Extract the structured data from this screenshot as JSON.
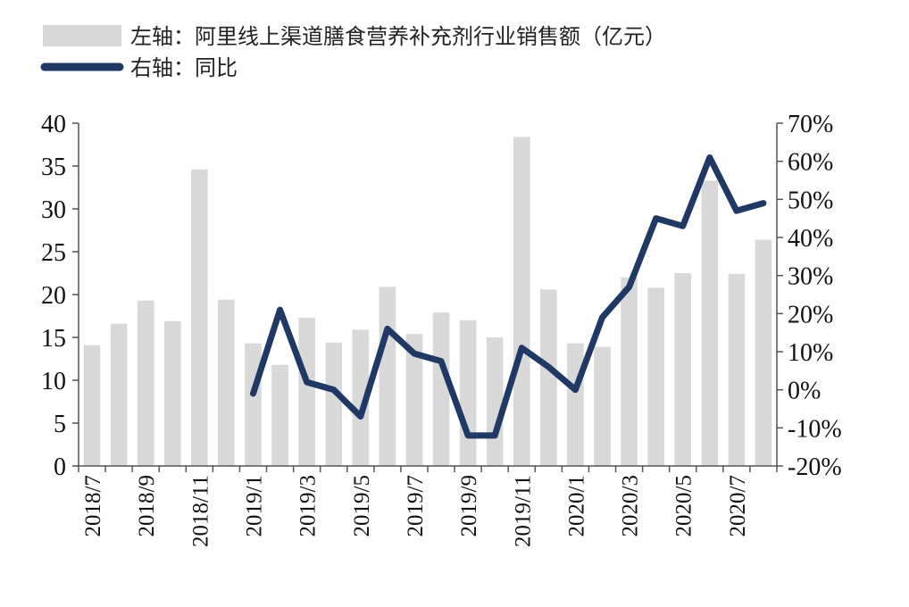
{
  "chart_data": {
    "type": "bar+line",
    "legend": {
      "bar_label": "左轴：阿里线上渠道膳食营养补充剂行业销售额（亿元）",
      "line_label": "右轴：同比"
    },
    "categories": [
      "2018/7",
      "2018/8",
      "2018/9",
      "2018/10",
      "2018/11",
      "2018/12",
      "2019/1",
      "2019/2",
      "2019/3",
      "2019/4",
      "2019/5",
      "2019/6",
      "2019/7",
      "2019/8",
      "2019/9",
      "2019/10",
      "2019/11",
      "2019/12",
      "2020/1",
      "2020/2",
      "2020/3",
      "2020/4",
      "2020/5",
      "2020/6",
      "2020/7",
      "2020/8"
    ],
    "x_tick_labels": [
      "2018/7",
      "",
      "2018/9",
      "",
      "2018/11",
      "",
      "2019/1",
      "",
      "2019/3",
      "",
      "2019/5",
      "",
      "2019/7",
      "",
      "2019/9",
      "",
      "2019/11",
      "",
      "2020/1",
      "",
      "2020/3",
      "",
      "2020/5",
      "",
      "2020/7",
      ""
    ],
    "bar_series": {
      "name": "阿里线上渠道膳食营养补充剂行业销售额（亿元）",
      "axis": "left",
      "color": "#d9d9d9",
      "values": [
        14.1,
        16.6,
        19.3,
        16.9,
        34.6,
        19.4,
        14.3,
        11.8,
        17.3,
        14.4,
        15.9,
        20.9,
        15.4,
        17.9,
        17.0,
        15.0,
        38.4,
        20.6,
        14.3,
        13.9,
        22.0,
        20.8,
        22.5,
        33.3,
        22.4,
        26.4
      ]
    },
    "line_series": {
      "name": "同比",
      "axis": "right",
      "color": "#1f3864",
      "values": [
        null,
        null,
        null,
        null,
        null,
        null,
        -1,
        21,
        2,
        0,
        -7,
        16,
        9.5,
        7.5,
        -12,
        -12,
        11,
        6,
        0,
        19,
        27,
        45,
        43,
        61,
        47,
        49
      ]
    },
    "left_axis": {
      "ylim": [
        0,
        40
      ],
      "ticks": [
        0,
        5,
        10,
        15,
        20,
        25,
        30,
        35,
        40
      ],
      "tick_labels": [
        "0",
        "5",
        "10",
        "15",
        "20",
        "25",
        "30",
        "35",
        "40"
      ]
    },
    "right_axis": {
      "ylim": [
        -20,
        70
      ],
      "ticks": [
        -20,
        -10,
        0,
        10,
        20,
        30,
        40,
        50,
        60,
        70
      ],
      "tick_labels": [
        "-20%",
        "-10%",
        "0%",
        "10%",
        "20%",
        "30%",
        "40%",
        "50%",
        "60%",
        "70%"
      ]
    },
    "grid": false
  }
}
